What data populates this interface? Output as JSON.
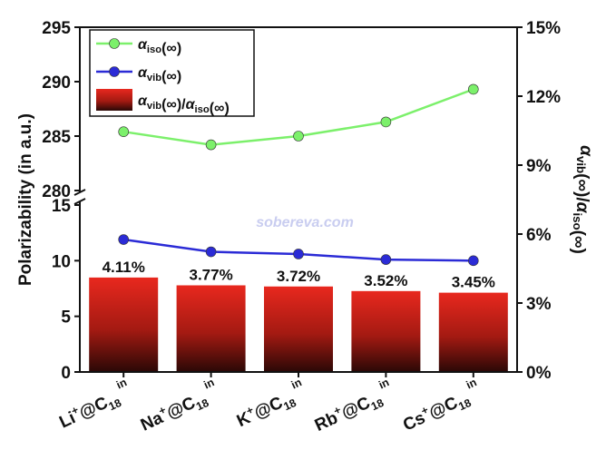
{
  "chart_data": {
    "type": "line",
    "y_label": "Polarizability (in a.u.)",
    "y2_label": "αvib(∞)/αiso(∞)",
    "watermark": "sobereva.com",
    "categories": [
      "Li+@C18in",
      "Na+@C18in",
      "K+@C18in",
      "Rb+@C18in",
      "Cs+@C18in"
    ],
    "ylim_top": [
      280,
      295
    ],
    "yticks_top": [
      280,
      285,
      290,
      295
    ],
    "ylim": [
      0,
      15
    ],
    "yticks": [
      0,
      5,
      10,
      15
    ],
    "y2lim": [
      0,
      15
    ],
    "y2ticks": [
      {
        "value": 0,
        "label": "0%"
      },
      {
        "value": 3,
        "label": "3%"
      },
      {
        "value": 6,
        "label": "6%"
      },
      {
        "value": 9,
        "label": "9%"
      },
      {
        "value": 12,
        "label": "12%"
      },
      {
        "value": 15,
        "label": "15%"
      }
    ],
    "legend": "upper left",
    "series": [
      {
        "name": "αiso(∞)",
        "type": "line",
        "axis": "y_top",
        "color": "#7cf06b",
        "values": [
          285.4,
          284.2,
          285.0,
          286.3,
          289.3
        ]
      },
      {
        "name": "αvib(∞)",
        "type": "line",
        "axis": "y",
        "color": "#2b2bd6",
        "values": [
          11.9,
          10.8,
          10.6,
          10.1,
          10.0
        ]
      },
      {
        "name": "αvib(∞)/αiso(∞)",
        "type": "bar",
        "axis": "y2",
        "color": "#e8281e",
        "values": [
          4.11,
          3.77,
          3.72,
          3.52,
          3.45
        ],
        "value_labels": [
          "4.11%",
          "3.77%",
          "3.72%",
          "3.52%",
          "3.45%"
        ]
      }
    ]
  }
}
